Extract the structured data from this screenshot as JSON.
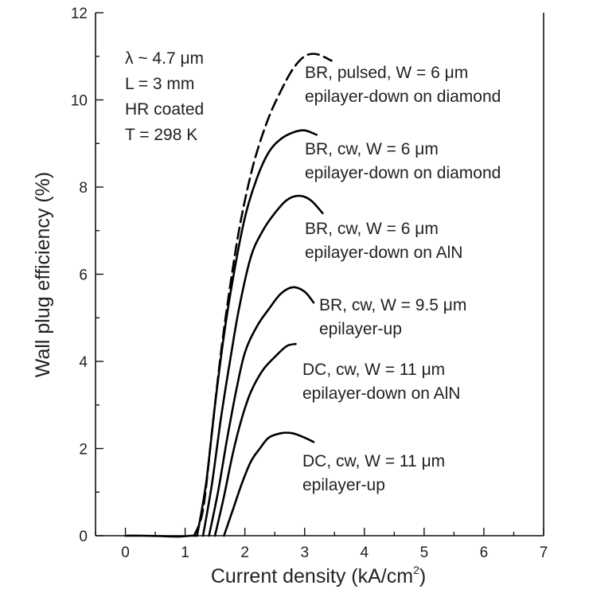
{
  "chart_data": {
    "type": "line",
    "xlabel": "Current density (kA/cm",
    "xlabel_sup": "2",
    "xlabel_close": ")",
    "ylabel": "Wall plug efficiency (%)",
    "xlim": [
      -0.5,
      7
    ],
    "ylim": [
      0,
      12
    ],
    "xticks": [
      0,
      1,
      2,
      3,
      4,
      5,
      6,
      7
    ],
    "yticks": [
      0,
      2,
      4,
      6,
      8,
      10,
      12
    ],
    "grid": false,
    "annotations": {
      "lambda": "λ ~ 4.7 μm",
      "length": "L = 3 mm",
      "coating": "HR coated",
      "temperature": "T = 298 K"
    },
    "series": [
      {
        "name_line1": "BR, pulsed, W = 6 μm",
        "name_line2": "epilayer-down on diamond",
        "style": "dashed",
        "x": [
          1.15,
          1.3,
          1.45,
          1.6,
          1.75,
          1.9,
          2.05,
          2.2,
          2.4,
          2.6,
          2.8,
          3.0,
          3.2,
          3.45
        ],
        "y": [
          0.0,
          0.6,
          2.4,
          4.2,
          5.7,
          7.0,
          8.0,
          8.8,
          9.6,
          10.2,
          10.7,
          11.0,
          11.05,
          10.9
        ]
      },
      {
        "name_line1": "BR, cw, W = 6 μm",
        "name_line2": "epilayer-down on diamond",
        "style": "solid",
        "x": [
          1.2,
          1.35,
          1.5,
          1.65,
          1.8,
          2.0,
          2.2,
          2.4,
          2.6,
          2.8,
          3.0,
          3.2
        ],
        "y": [
          0.0,
          1.2,
          3.0,
          4.6,
          5.9,
          7.3,
          8.2,
          8.8,
          9.1,
          9.25,
          9.3,
          9.2
        ]
      },
      {
        "name_line1": "BR, cw, W = 6 μm",
        "name_line2": "epilayer-down on AlN",
        "style": "solid",
        "x": [
          1.3,
          1.45,
          1.6,
          1.75,
          1.9,
          2.1,
          2.3,
          2.5,
          2.7,
          2.9,
          3.1,
          3.3
        ],
        "y": [
          0.0,
          1.2,
          2.7,
          4.0,
          5.2,
          6.4,
          7.0,
          7.4,
          7.7,
          7.8,
          7.7,
          7.4
        ]
      },
      {
        "name_line1": "BR, cw, W = 9.5 μm",
        "name_line2": "epilayer-up",
        "style": "solid",
        "x": [
          1.4,
          1.55,
          1.7,
          1.85,
          2.0,
          2.2,
          2.4,
          2.6,
          2.8,
          3.0,
          3.15
        ],
        "y": [
          0.0,
          1.0,
          2.2,
          3.3,
          4.2,
          4.8,
          5.2,
          5.55,
          5.7,
          5.6,
          5.35
        ]
      },
      {
        "name_line1": "DC, cw, W = 11 μm",
        "name_line2": "epilayer-down on AlN",
        "style": "solid",
        "x": [
          1.5,
          1.65,
          1.8,
          1.95,
          2.1,
          2.3,
          2.5,
          2.7,
          2.85
        ],
        "y": [
          0.0,
          0.9,
          1.9,
          2.7,
          3.3,
          3.8,
          4.1,
          4.35,
          4.4
        ]
      },
      {
        "name_line1": "DC, cw, W = 11 μm",
        "name_line2": "epilayer-up",
        "style": "solid",
        "x": [
          1.65,
          1.8,
          1.95,
          2.1,
          2.25,
          2.4,
          2.6,
          2.8,
          3.0,
          3.15
        ],
        "y": [
          0.0,
          0.6,
          1.2,
          1.7,
          2.0,
          2.25,
          2.35,
          2.35,
          2.25,
          2.15
        ]
      },
      {
        "name_line1": "",
        "name_line2": "",
        "style": "solid",
        "x": [
          0.0,
          0.3,
          0.6,
          0.9,
          1.1,
          1.2
        ],
        "y": [
          0.0,
          0.0,
          -0.01,
          -0.02,
          0.0,
          0.0
        ]
      }
    ]
  }
}
